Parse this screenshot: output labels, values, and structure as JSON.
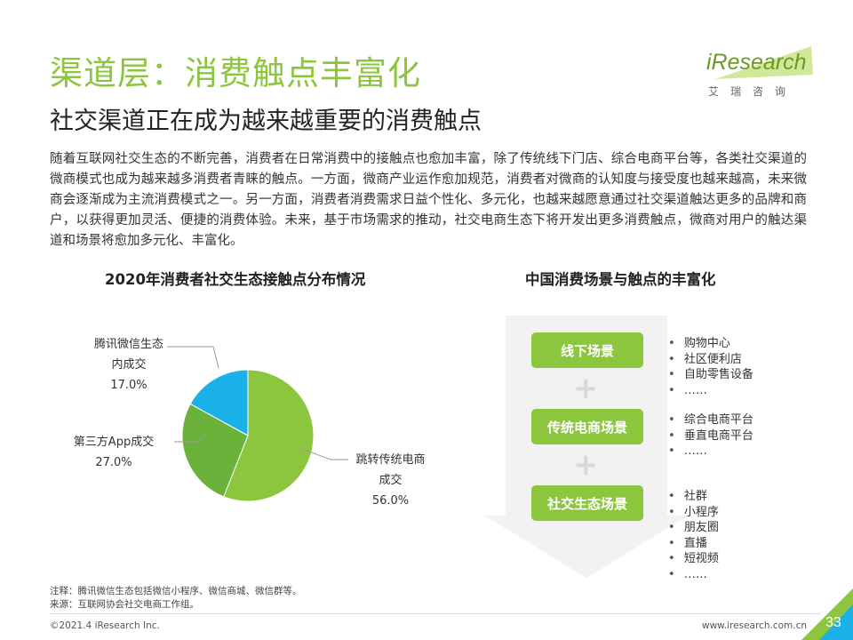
{
  "header": {
    "title": "渠道层：消费触点丰富化",
    "subtitle": "社交渠道正在成为越来越重要的消费触点"
  },
  "logo": {
    "brand": "iResearch",
    "cn": "艾瑞咨询"
  },
  "body_text": "随着互联网社交生态的不断完善，消费者在日常消费中的接触点也愈加丰富，除了传统线下门店、综合电商平台等，各类社交渠道的微商模式也成为越来越多消费者青睐的触点。一方面，微商产业运作愈加规范，消费者对微商的认知度与接受度也越来越高，未来微商会逐渐成为主流消费模式之一。另一方面，消费者消费需求日益个性化、多元化，也越来越愿意通过社交渠道触达更多的品牌和商户，以获得更加灵活、便捷的消费体验。未来，基于市场需求的推动，社交电商生态下将开发出更多消费触点，微商对用户的触达渠道和场景将愈加多元化、丰富化。",
  "chart_data": {
    "type": "pie",
    "title": "2020年消费者社交生态接触点分布情况",
    "slices": [
      {
        "name": "跳转传统电商成交",
        "label_line1": "跳转传统电商",
        "label_line2": "成交",
        "value": 56.0,
        "display": "56.0%",
        "color": "#8cc63f"
      },
      {
        "name": "第三方App成交",
        "label_line1": "第三方App成交",
        "value": 27.0,
        "display": "27.0%",
        "color": "#6ab23a"
      },
      {
        "name": "腾讯微信生态内成交",
        "label_line1": "腾讯微信生态",
        "label_line2": "内成交",
        "value": 17.0,
        "display": "17.0%",
        "color": "#1ab0e8"
      }
    ]
  },
  "scenes": {
    "title": "中国消费场景与触点的丰富化",
    "groups": [
      {
        "label": "线下场景",
        "items": [
          "购物中心",
          "社区便利店",
          "自助零售设备",
          "……"
        ]
      },
      {
        "label": "传统电商场景",
        "items": [
          "综合电商平台",
          "垂直电商平台",
          "……"
        ]
      },
      {
        "label": "社交生态场景",
        "items": [
          "社群",
          "小程序",
          "朋友圈",
          "直播",
          "短视频",
          "……"
        ]
      }
    ],
    "plus": "+"
  },
  "notes": {
    "note": "注释：腾讯微信生态包括微信小程序、微信商城、微信群等。",
    "source": "来源：互联网协会社交电商工作组。"
  },
  "footer": {
    "copyright": "©2021.4 iResearch Inc.",
    "site": "www.iresearch.com.cn",
    "page": "33"
  }
}
